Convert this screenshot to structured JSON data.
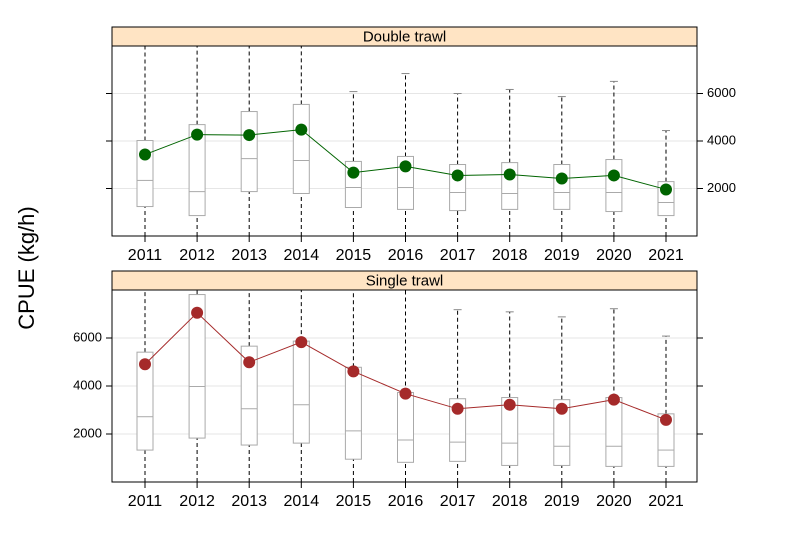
{
  "chart_data": [
    {
      "type": "box",
      "title": "Double trawl",
      "ylabel": "CPUE (kg/h)",
      "ytick_side": "right",
      "grid": true,
      "categories": [
        "2011",
        "2012",
        "2013",
        "2014",
        "2015",
        "2016",
        "2017",
        "2018",
        "2019",
        "2020",
        "2021"
      ],
      "values": [
        3430,
        4270,
        4250,
        4480,
        2670,
        2930,
        2550,
        2590,
        2420,
        2550,
        1960
      ],
      "color": "#006400",
      "box_color": "#aaaaaa",
      "low": [
        0,
        0,
        0,
        0,
        0,
        0,
        0,
        0,
        0,
        0,
        0
      ],
      "q1": [
        1240,
        860,
        1870,
        1790,
        1200,
        1120,
        1070,
        1120,
        1120,
        1030,
        860
      ],
      "median": [
        2340,
        1870,
        3260,
        3180,
        2040,
        2040,
        1830,
        1790,
        1830,
        1830,
        1410
      ],
      "q3": [
        4020,
        4690,
        5240,
        5540,
        3140,
        3350,
        3010,
        3090,
        3010,
        3220,
        2290
      ],
      "high": [
        8000,
        8000,
        8000,
        8000,
        6080,
        6840,
        6000,
        6170,
        5870,
        6510,
        4440
      ],
      "ylim": [
        0,
        8000
      ],
      "yticks": [
        2000,
        4000,
        6000
      ]
    },
    {
      "type": "box",
      "title": "Single trawl",
      "ytick_side": "left",
      "grid": true,
      "categories": [
        "2011",
        "2012",
        "2013",
        "2014",
        "2015",
        "2016",
        "2017",
        "2018",
        "2019",
        "2020",
        "2021"
      ],
      "values": [
        4905,
        7050,
        4990,
        5830,
        4610,
        3680,
        3050,
        3220,
        3050,
        3430,
        2590
      ],
      "color": "#a52a2a",
      "box_color": "#aaaaaa",
      "low": [
        0,
        0,
        0,
        0,
        0,
        0,
        0,
        0,
        0,
        0,
        0
      ],
      "q1": [
        1330,
        1830,
        1540,
        1620,
        950,
        820,
        860,
        690,
        690,
        650,
        650
      ],
      "median": [
        2720,
        3980,
        3050,
        3220,
        2130,
        1750,
        1660,
        1620,
        1490,
        1490,
        1330
      ],
      "q3": [
        5410,
        7810,
        5660,
        5870,
        4780,
        3730,
        3470,
        3520,
        3430,
        3520,
        2840
      ],
      "high": [
        8000,
        8000,
        8000,
        8000,
        8000,
        8000,
        7180,
        7090,
        6880,
        7220,
        6080
      ],
      "ylim": [
        0,
        8000
      ],
      "yticks": [
        2000,
        4000,
        6000
      ]
    }
  ]
}
